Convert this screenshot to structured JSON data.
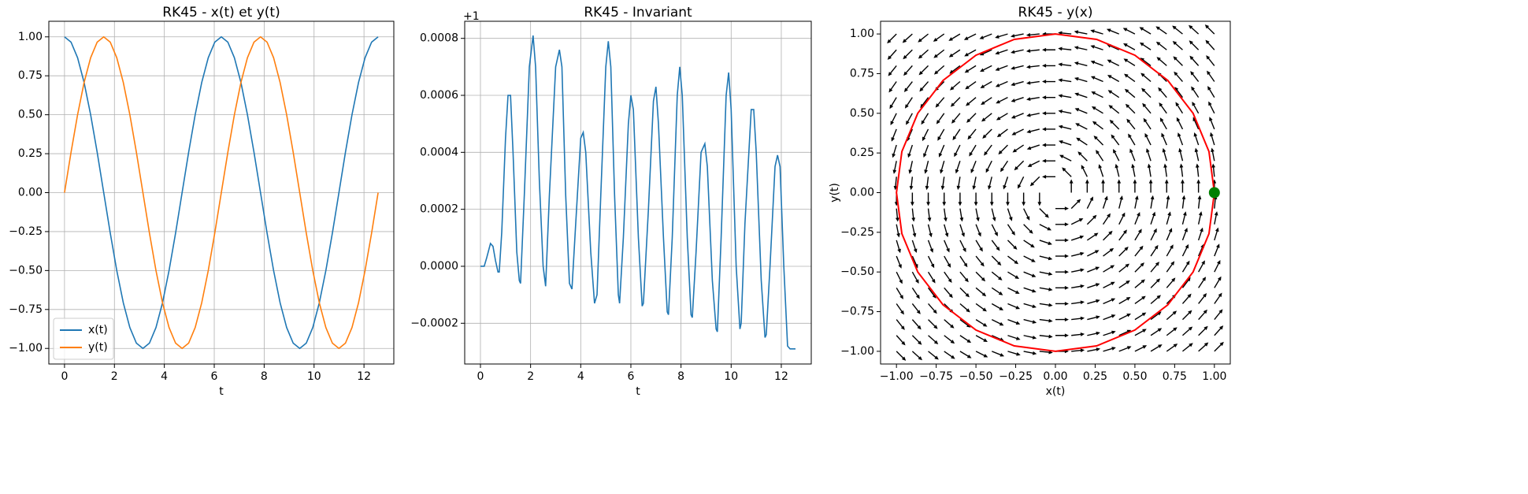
{
  "chart_data": [
    {
      "type": "line",
      "title": "RK45 - x(t) et y(t)",
      "x_label": "t",
      "x": [
        0,
        0.262,
        0.524,
        0.785,
        1.047,
        1.309,
        1.571,
        1.833,
        2.094,
        2.356,
        2.618,
        2.88,
        3.142,
        3.403,
        3.665,
        3.927,
        4.189,
        4.451,
        4.712,
        4.974,
        5.236,
        5.498,
        5.76,
        6.021,
        6.283,
        6.545,
        6.807,
        7.069,
        7.33,
        7.592,
        7.854,
        8.116,
        8.378,
        8.639,
        8.901,
        9.163,
        9.425,
        9.687,
        9.948,
        10.21,
        10.472,
        10.734,
        10.996,
        11.257,
        11.519,
        11.781,
        12.043,
        12.305,
        12.566
      ],
      "series": [
        {
          "name": "x(t)",
          "color": "#1f77b4",
          "values": [
            1,
            0.966,
            0.866,
            0.707,
            0.5,
            0.259,
            0,
            -0.259,
            -0.5,
            -0.707,
            -0.866,
            -0.966,
            -1,
            -0.966,
            -0.866,
            -0.707,
            -0.5,
            -0.259,
            0,
            0.259,
            0.5,
            0.707,
            0.866,
            0.966,
            1,
            0.966,
            0.866,
            0.707,
            0.5,
            0.259,
            0,
            -0.259,
            -0.5,
            -0.707,
            -0.866,
            -0.966,
            -1,
            -0.966,
            -0.866,
            -0.707,
            -0.5,
            -0.259,
            0,
            0.259,
            0.5,
            0.707,
            0.866,
            0.966,
            1
          ]
        },
        {
          "name": "y(t)",
          "color": "#ff7f0e",
          "values": [
            0,
            0.259,
            0.5,
            0.707,
            0.866,
            0.966,
            1,
            0.966,
            0.866,
            0.707,
            0.5,
            0.259,
            0,
            -0.259,
            -0.5,
            -0.707,
            -0.866,
            -0.966,
            -1,
            -0.966,
            -0.866,
            -0.707,
            -0.5,
            -0.259,
            0,
            0.259,
            0.5,
            0.707,
            0.866,
            0.966,
            1,
            0.966,
            0.866,
            0.707,
            0.5,
            0.259,
            0,
            -0.259,
            -0.5,
            -0.707,
            -0.866,
            -0.966,
            -1,
            -0.966,
            -0.866,
            -0.707,
            -0.5,
            -0.259,
            0
          ]
        }
      ],
      "xlim": [
        -0.628,
        13.195
      ],
      "ylim": [
        -1.1,
        1.1
      ],
      "xticks": [
        0,
        2,
        4,
        6,
        8,
        10,
        12
      ],
      "yticks": [
        {
          "value": -1,
          "label": "−1.00"
        },
        {
          "value": -0.75,
          "label": "−0.75"
        },
        {
          "value": -0.5,
          "label": "−0.50"
        },
        {
          "value": -0.25,
          "label": "−0.25"
        },
        {
          "value": 0,
          "label": "0.00"
        },
        0.25,
        {
          "value": 0.5,
          "label": "0.50"
        },
        0.75,
        {
          "value": 1,
          "label": "1.00"
        }
      ],
      "grid": true,
      "legend": "lower left"
    },
    {
      "type": "line",
      "title": "RK45 - Invariant",
      "x_label": "t",
      "offset_label": "+1",
      "x": [
        0,
        0.15,
        0.25,
        0.4,
        0.5,
        0.6,
        0.7,
        0.75,
        0.85,
        1.0,
        1.1,
        1.2,
        1.3,
        1.45,
        1.55,
        1.6,
        1.75,
        1.95,
        2.1,
        2.2,
        2.35,
        2.5,
        2.6,
        2.75,
        3.0,
        3.15,
        3.25,
        3.4,
        3.55,
        3.65,
        3.8,
        4.0,
        4.1,
        4.2,
        4.4,
        4.55,
        4.65,
        4.8,
        5.0,
        5.1,
        5.2,
        5.35,
        5.5,
        5.55,
        5.7,
        5.9,
        6.0,
        6.1,
        6.3,
        6.45,
        6.5,
        6.7,
        6.9,
        7.0,
        7.1,
        7.3,
        7.45,
        7.5,
        7.65,
        7.85,
        7.95,
        8.05,
        8.25,
        8.4,
        8.45,
        8.6,
        8.8,
        8.95,
        9.05,
        9.25,
        9.4,
        9.45,
        9.6,
        9.8,
        9.9,
        10.0,
        10.2,
        10.35,
        10.4,
        10.55,
        10.8,
        10.9,
        11.0,
        11.2,
        11.35,
        11.4,
        11.55,
        11.75,
        11.85,
        11.95,
        12.1,
        12.25,
        12.35,
        12.566
      ],
      "series": [
        {
          "color": "#1f77b4",
          "values": [
            0,
            0,
            3e-05,
            8e-05,
            7e-05,
            2e-05,
            -2e-05,
            -2e-05,
            0.00012,
            0.00045,
            0.0006,
            0.0006,
            0.0004,
            5e-05,
            -5e-05,
            -6e-05,
            0.00025,
            0.0007,
            0.00081,
            0.0007,
            0.0003,
            0,
            -7e-05,
            0.00025,
            0.0007,
            0.00076,
            0.0007,
            0.00025,
            -6e-05,
            -8e-05,
            0.00015,
            0.00045,
            0.00047,
            0.0004,
            5e-05,
            -0.00013,
            -0.0001,
            0.00025,
            0.0007,
            0.00079,
            0.0007,
            0.00025,
            -0.0001,
            -0.00013,
            0.0001,
            0.0005,
            0.0006,
            0.00055,
            0.0001,
            -0.00014,
            -0.00013,
            0.0002,
            0.00058,
            0.00063,
            0.0005,
            0.0001,
            -0.00016,
            -0.00017,
            0.0001,
            0.0006,
            0.0007,
            0.0006,
            0.0001,
            -0.00017,
            -0.00018,
            5e-05,
            0.0004,
            0.00043,
            0.00035,
            -5e-05,
            -0.00022,
            -0.00023,
            0.0001,
            0.0006,
            0.00068,
            0.00055,
            0,
            -0.00022,
            -0.0002,
            0.00015,
            0.00055,
            0.00055,
            0.0004,
            -5e-05,
            -0.00025,
            -0.00024,
            0,
            0.00035,
            0.00039,
            0.00035,
            0,
            -0.00028,
            -0.00029,
            -0.00029
          ]
        }
      ],
      "xlim": [
        -0.628,
        13.195
      ],
      "ylim": [
        -0.000343,
        0.00086
      ],
      "xticks": [
        0,
        2,
        4,
        6,
        8,
        10,
        12
      ],
      "yticks": [
        {
          "value": -0.0002,
          "label": "−0.0002"
        },
        {
          "value": 0,
          "label": "0.0000"
        },
        0.0002,
        0.0004,
        0.0006,
        0.0008
      ],
      "grid": true
    },
    {
      "type": "quiver",
      "title": "RK45 - y(x)",
      "x_label": "x(t)",
      "y_label": "y(t)",
      "quiver": {
        "x": [
          -1,
          -0.9,
          -0.8,
          -0.7,
          -0.6,
          -0.5,
          -0.4,
          -0.3,
          -0.2,
          -0.1,
          0,
          0.1,
          0.2,
          0.3,
          0.4,
          0.5,
          0.6,
          0.7,
          0.8,
          0.9,
          1
        ],
        "y": [
          -1,
          -0.9,
          -0.8,
          -0.7,
          -0.6,
          -0.5,
          -0.4,
          -0.3,
          -0.2,
          -0.1,
          0,
          0.1,
          0.2,
          0.3,
          0.4,
          0.5,
          0.6,
          0.7,
          0.8,
          0.9,
          1
        ],
        "field": "rotation",
        "color": "#000000"
      },
      "series": [
        {
          "color": "#ff0000",
          "x": [
            1,
            0.966,
            0.866,
            0.707,
            0.5,
            0.259,
            0,
            -0.259,
            -0.5,
            -0.707,
            -0.866,
            -0.966,
            -1,
            -0.966,
            -0.866,
            -0.707,
            -0.5,
            -0.259,
            0,
            0.259,
            0.5,
            0.707,
            0.866,
            0.966,
            1
          ],
          "values": [
            0,
            0.259,
            0.5,
            0.707,
            0.866,
            0.966,
            1,
            0.966,
            0.866,
            0.707,
            0.5,
            0.259,
            0,
            -0.259,
            -0.5,
            -0.707,
            -0.866,
            -0.966,
            -1,
            -0.966,
            -0.866,
            -0.707,
            -0.5,
            -0.259,
            0
          ]
        }
      ],
      "points": [
        {
          "x": 1,
          "y": 0,
          "color": "#008000"
        }
      ],
      "xlim": [
        -1.1,
        1.1
      ],
      "ylim": [
        -1.08,
        1.08
      ],
      "xticks": [
        {
          "value": -1,
          "label": "−1.00"
        },
        {
          "value": -0.75,
          "label": "−0.75"
        },
        {
          "value": -0.5,
          "label": "−0.50"
        },
        {
          "value": -0.25,
          "label": "−0.25"
        },
        {
          "value": 0,
          "label": "0.00"
        },
        0.25,
        {
          "value": 0.5,
          "label": "0.50"
        },
        0.75,
        {
          "value": 1,
          "label": "1.00"
        }
      ],
      "yticks": [
        {
          "value": -1,
          "label": "−1.00"
        },
        {
          "value": -0.75,
          "label": "−0.75"
        },
        {
          "value": -0.5,
          "label": "−0.50"
        },
        {
          "value": -0.25,
          "label": "−0.25"
        },
        {
          "value": 0,
          "label": "0.00"
        },
        0.25,
        {
          "value": 0.5,
          "label": "0.50"
        },
        0.75,
        {
          "value": 1,
          "label": "1.00"
        }
      ],
      "grid": false
    }
  ]
}
